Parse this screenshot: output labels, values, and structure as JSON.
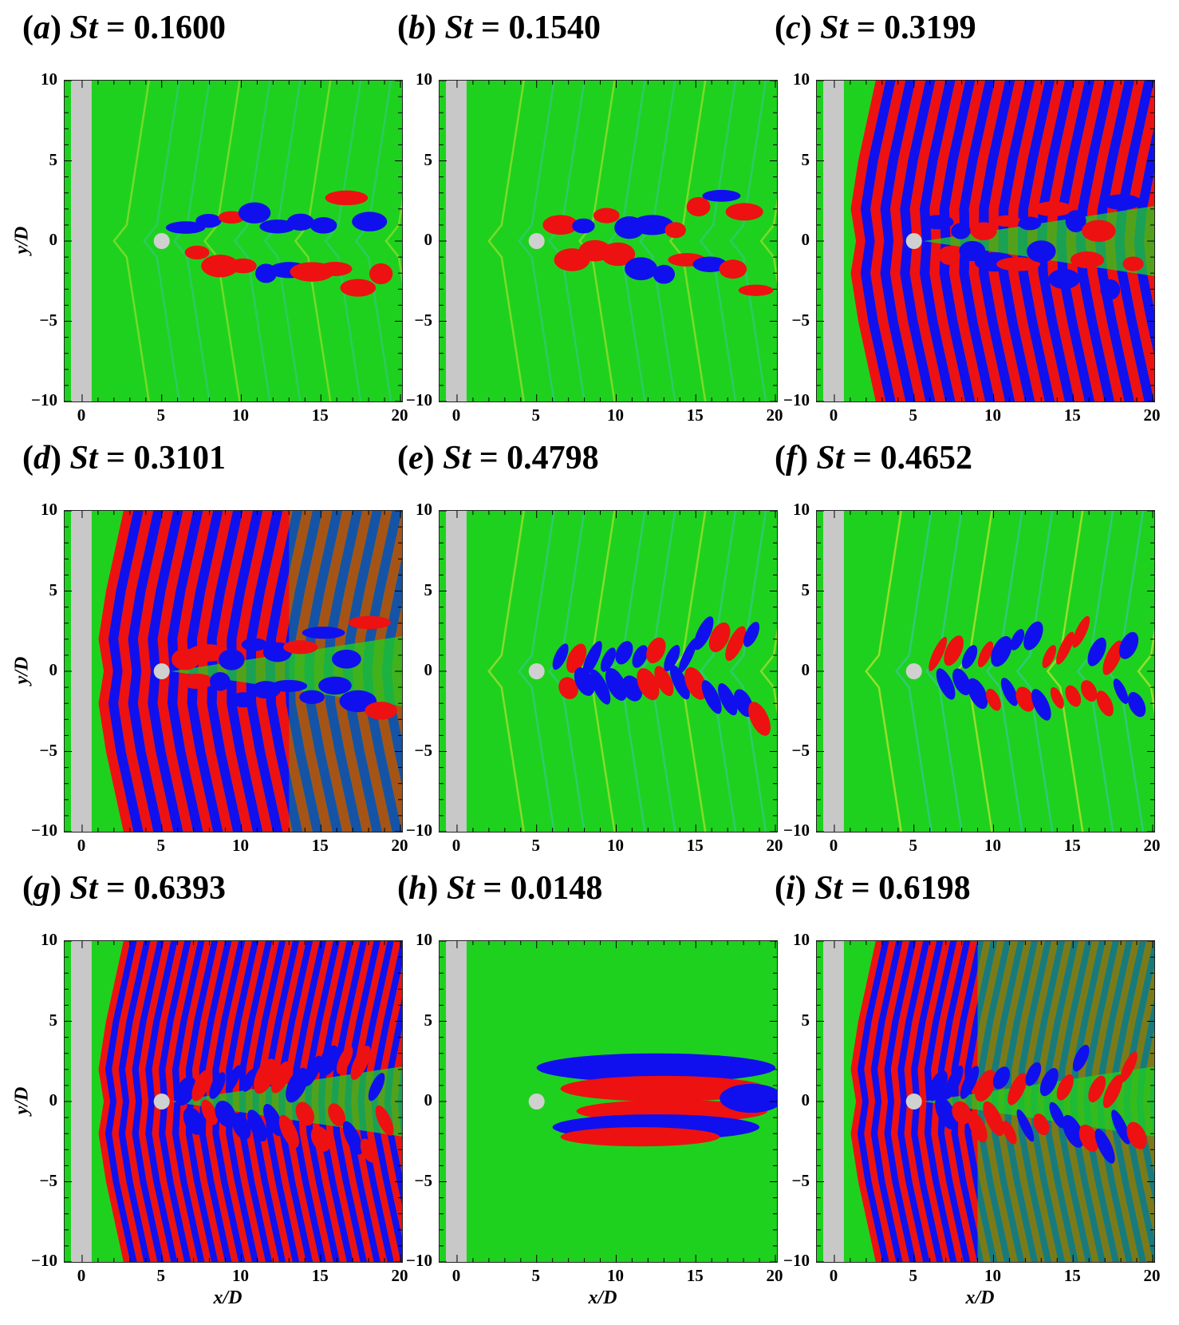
{
  "figure": {
    "x_axis_label": "x/D",
    "y_axis_label": "y/D",
    "panels": [
      {
        "id": "a",
        "letter": "(a)",
        "st_label": "St",
        "eq": "=",
        "value": "0.1600",
        "pattern": "wake",
        "intensity": 0.1
      },
      {
        "id": "b",
        "letter": "(b)",
        "st_label": "St",
        "eq": "=",
        "value": "0.1540",
        "pattern": "wake",
        "intensity": 0.15
      },
      {
        "id": "c",
        "letter": "(c)",
        "st_label": "St",
        "eq": "=",
        "value": "0.3199",
        "pattern": "waves",
        "intensity": 1.0
      },
      {
        "id": "d",
        "letter": "(d)",
        "st_label": "St",
        "eq": "=",
        "value": "0.3101",
        "pattern": "waves",
        "intensity": 0.85
      },
      {
        "id": "e",
        "letter": "(e)",
        "st_label": "St",
        "eq": "=",
        "value": "0.4798",
        "pattern": "wake-fine",
        "intensity": 0.2
      },
      {
        "id": "f",
        "letter": "(f)",
        "st_label": "St",
        "eq": "=",
        "value": "0.4652",
        "pattern": "wake-fine",
        "intensity": 0.3
      },
      {
        "id": "g",
        "letter": "(g)",
        "st_label": "St",
        "eq": "=",
        "value": "0.6393",
        "pattern": "waves-fine",
        "intensity": 1.0
      },
      {
        "id": "h",
        "letter": "(h)",
        "st_label": "St",
        "eq": "=",
        "value": "0.0148",
        "pattern": "wake-low",
        "intensity": 0.0
      },
      {
        "id": "i",
        "letter": "(i)",
        "st_label": "St",
        "eq": "=",
        "value": "0.6198",
        "pattern": "waves-fine",
        "intensity": 0.8
      }
    ],
    "x_ticks": [
      "0",
      "5",
      "10",
      "15",
      "20"
    ],
    "y_ticks": [
      "10",
      "5",
      "0",
      "−5",
      "−10"
    ],
    "colors": {
      "background_green": "#1fd11f",
      "positive_red": "#ee1111",
      "negative_blue": "#1010ee",
      "wall_gray": "#c8c8c8",
      "cylinder_gray": "#d0d0d0"
    }
  },
  "chart_data": [
    {
      "type": "heatmap",
      "title": "(a) St = 0.1600",
      "xlabel": "",
      "ylabel": "y/D",
      "xlim": [
        0,
        20
      ],
      "ylim": [
        -10,
        10
      ]
    },
    {
      "type": "heatmap",
      "title": "(b) St = 0.1540",
      "xlabel": "",
      "ylabel": "",
      "xlim": [
        0,
        20
      ],
      "ylim": [
        -10,
        10
      ]
    },
    {
      "type": "heatmap",
      "title": "(c) St = 0.3199",
      "xlabel": "",
      "ylabel": "",
      "xlim": [
        0,
        20
      ],
      "ylim": [
        -10,
        10
      ]
    },
    {
      "type": "heatmap",
      "title": "(d) St = 0.3101",
      "xlabel": "",
      "ylabel": "y/D",
      "xlim": [
        0,
        20
      ],
      "ylim": [
        -10,
        10
      ]
    },
    {
      "type": "heatmap",
      "title": "(e) St = 0.4798",
      "xlabel": "",
      "ylabel": "",
      "xlim": [
        0,
        20
      ],
      "ylim": [
        -10,
        10
      ]
    },
    {
      "type": "heatmap",
      "title": "(f) St = 0.4652",
      "xlabel": "",
      "ylabel": "",
      "xlim": [
        0,
        20
      ],
      "ylim": [
        -10,
        10
      ]
    },
    {
      "type": "heatmap",
      "title": "(g) St = 0.6393",
      "xlabel": "x/D",
      "ylabel": "y/D",
      "xlim": [
        0,
        20
      ],
      "ylim": [
        -10,
        10
      ]
    },
    {
      "type": "heatmap",
      "title": "(h) St = 0.0148",
      "xlabel": "x/D",
      "ylabel": "",
      "xlim": [
        0,
        20
      ],
      "ylim": [
        -10,
        10
      ]
    },
    {
      "type": "heatmap",
      "title": "(i) St = 0.6198",
      "xlabel": "x/D",
      "ylabel": "",
      "xlim": [
        0,
        20
      ],
      "ylim": [
        -10,
        10
      ]
    }
  ]
}
